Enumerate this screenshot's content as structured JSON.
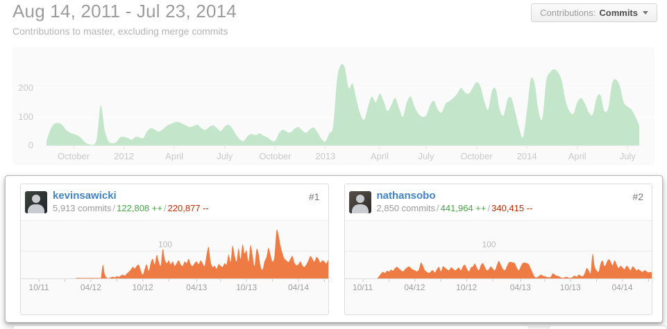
{
  "header": {
    "title": "Aug 14, 2011 - Jul 23, 2014",
    "subtitle": "Contributions to master, excluding merge commits",
    "filter_button": {
      "prefix": "Contributions:",
      "value": "Commits"
    }
  },
  "labels": {
    "separator": "/"
  },
  "colors": {
    "overview_fill": "#c3e6ca",
    "contributor_fill": "#ee7b43",
    "link_blue": "#4183c4",
    "additions_green": "#46a546",
    "deletions_red": "#bd2c00",
    "chart_bg": "#fafafa"
  },
  "contributors": [
    {
      "rank": "#1",
      "username": "kevinsawicki",
      "commits": "5,913 commits",
      "additions": "122,808 ++",
      "deletions": "220,877 --"
    },
    {
      "rank": "#2",
      "username": "nathansobo",
      "commits": "2,850 commits",
      "additions": "441,964 ++",
      "deletions": "340,415 --"
    }
  ],
  "chart_data": [
    {
      "type": "area",
      "name": "all-contributors-commits-per-week",
      "fill": "#c3e6ca",
      "ylim": [
        0,
        300
      ],
      "grid": true,
      "y_ticks": [
        {
          "value": 0,
          "label": "0"
        },
        {
          "value": 100,
          "label": "100"
        },
        {
          "value": 200,
          "label": "200"
        }
      ],
      "x_ticks": [
        {
          "week": 7,
          "label": "October"
        },
        {
          "week": 20,
          "label": "2012"
        },
        {
          "week": 33,
          "label": "April"
        },
        {
          "week": 46,
          "label": "July"
        },
        {
          "week": 59,
          "label": "October"
        },
        {
          "week": 72,
          "label": "2013"
        },
        {
          "week": 86,
          "label": "April"
        },
        {
          "week": 98,
          "label": "July"
        },
        {
          "week": 111,
          "label": "October"
        },
        {
          "week": 124,
          "label": "2014"
        },
        {
          "week": 137,
          "label": "April"
        },
        {
          "week": 150,
          "label": "July"
        }
      ],
      "values": [
        15,
        55,
        75,
        78,
        72,
        55,
        45,
        40,
        35,
        25,
        10,
        4,
        2,
        25,
        140,
        55,
        15,
        8,
        12,
        28,
        30,
        26,
        20,
        30,
        28,
        26,
        50,
        60,
        55,
        48,
        56,
        68,
        74,
        80,
        82,
        76,
        70,
        64,
        68,
        72,
        60,
        54,
        64,
        70,
        60,
        50,
        66,
        72,
        58,
        36,
        20,
        16,
        34,
        40,
        36,
        42,
        34,
        28,
        18,
        16,
        42,
        55,
        48,
        45,
        58,
        64,
        52,
        44,
        56,
        62,
        45,
        22,
        14,
        42,
        68,
        230,
        280,
        270,
        200,
        215,
        160,
        110,
        90,
        135,
        170,
        150,
        180,
        155,
        120,
        140,
        165,
        130,
        100,
        150,
        170,
        135,
        110,
        100,
        105,
        140,
        155,
        125,
        115,
        145,
        155,
        165,
        180,
        200,
        185,
        180,
        200,
        220,
        205,
        155,
        125,
        190,
        195,
        125,
        105,
        160,
        165,
        115,
        60,
        30,
        120,
        230,
        215,
        120,
        95,
        225,
        255,
        265,
        255,
        225,
        155,
        120,
        110,
        150,
        165,
        145,
        115,
        108,
        165,
        175,
        120,
        130,
        215,
        230,
        205,
        150,
        135,
        125,
        100,
        70
      ]
    },
    {
      "type": "area",
      "name": "kevinsawicki-commits-per-week",
      "fill": "#ee7b43",
      "ylim": [
        0,
        200
      ],
      "grid": true,
      "y_ticks": [
        {
          "value": 100,
          "label": "100"
        }
      ],
      "x_ticks": [
        {
          "week": 7,
          "label": "10/11"
        },
        {
          "week": 33,
          "label": "04/12"
        },
        {
          "week": 59,
          "label": "10/12"
        },
        {
          "week": 86,
          "label": "04/13"
        },
        {
          "week": 111,
          "label": "10/13"
        },
        {
          "week": 137,
          "label": "04/14"
        }
      ],
      "minor_tick_weeks": [
        20,
        46,
        72,
        98,
        124,
        150
      ],
      "values": [
        0,
        0,
        0,
        0,
        0,
        0,
        0,
        0,
        0,
        0,
        0,
        0,
        0,
        0,
        0,
        0,
        0,
        0,
        0,
        0,
        0,
        0,
        0,
        0,
        0,
        0,
        2,
        2,
        2,
        2,
        2,
        2,
        2,
        2,
        2,
        2,
        2,
        2,
        2,
        50,
        15,
        3,
        1,
        4,
        6,
        4,
        8,
        6,
        10,
        14,
        10,
        18,
        24,
        32,
        42,
        36,
        46,
        50,
        30,
        14,
        35,
        52,
        28,
        58,
        72,
        52,
        86,
        62,
        48,
        108,
        72,
        56,
        66,
        52,
        62,
        46,
        56,
        66,
        52,
        46,
        62,
        56,
        72,
        52,
        46,
        56,
        62,
        52,
        66,
        56,
        46,
        88,
        115,
        62,
        42,
        46,
        36,
        52,
        46,
        42,
        56,
        52,
        88,
        62,
        120,
        85,
        62,
        110,
        72,
        125,
        92,
        102,
        62,
        122,
        86,
        46,
        106,
        92,
        46,
        32,
        62,
        78,
        112,
        86,
        62,
        82,
        175,
        160,
        120,
        92,
        72,
        66,
        60,
        72,
        82,
        58,
        48,
        52,
        62,
        48,
        42,
        52,
        66,
        82,
        72,
        62,
        78,
        72,
        58,
        66,
        62,
        55,
        68,
        60
      ]
    },
    {
      "type": "area",
      "name": "nathansobo-commits-per-week",
      "fill": "#ee7b43",
      "ylim": [
        0,
        200
      ],
      "grid": true,
      "y_ticks": [
        {
          "value": 100,
          "label": "100"
        }
      ],
      "x_ticks": [
        {
          "week": 7,
          "label": "10/11"
        },
        {
          "week": 33,
          "label": "04/12"
        },
        {
          "week": 59,
          "label": "10/12"
        },
        {
          "week": 86,
          "label": "04/13"
        },
        {
          "week": 111,
          "label": "10/13"
        },
        {
          "week": 137,
          "label": "04/14"
        }
      ],
      "minor_tick_weeks": [
        20,
        46,
        72,
        98,
        124,
        150
      ],
      "values": [
        0,
        0,
        0,
        0,
        0,
        0,
        0,
        0,
        0,
        0,
        0,
        0,
        0,
        0,
        0,
        8,
        18,
        24,
        20,
        28,
        25,
        32,
        28,
        38,
        42,
        36,
        30,
        26,
        34,
        40,
        44,
        38,
        32,
        30,
        26,
        34,
        58,
        46,
        30,
        24,
        20,
        26,
        30,
        22,
        34,
        42,
        26,
        44,
        40,
        34,
        30,
        40,
        36,
        30,
        34,
        40,
        30,
        44,
        50,
        36,
        26,
        40,
        44,
        54,
        40,
        30,
        48,
        56,
        42,
        30,
        34,
        44,
        36,
        30,
        48,
        64,
        50,
        36,
        30,
        44,
        58,
        60,
        58,
        56,
        40,
        30,
        44,
        56,
        58,
        56,
        52,
        36,
        20,
        6,
        4,
        8,
        14,
        10,
        8,
        6,
        4,
        6,
        18,
        14,
        10,
        8,
        4,
        2,
        4,
        6,
        3,
        2,
        6,
        10,
        6,
        14,
        10,
        8,
        18,
        38,
        30,
        22,
        90,
        45,
        30,
        25,
        55,
        65,
        45,
        58,
        70,
        62,
        48,
        66,
        52,
        38,
        46,
        40,
        34,
        46,
        40,
        30,
        44,
        38,
        30,
        34,
        28,
        24,
        30,
        26,
        22,
        24,
        20,
        18
      ]
    }
  ]
}
